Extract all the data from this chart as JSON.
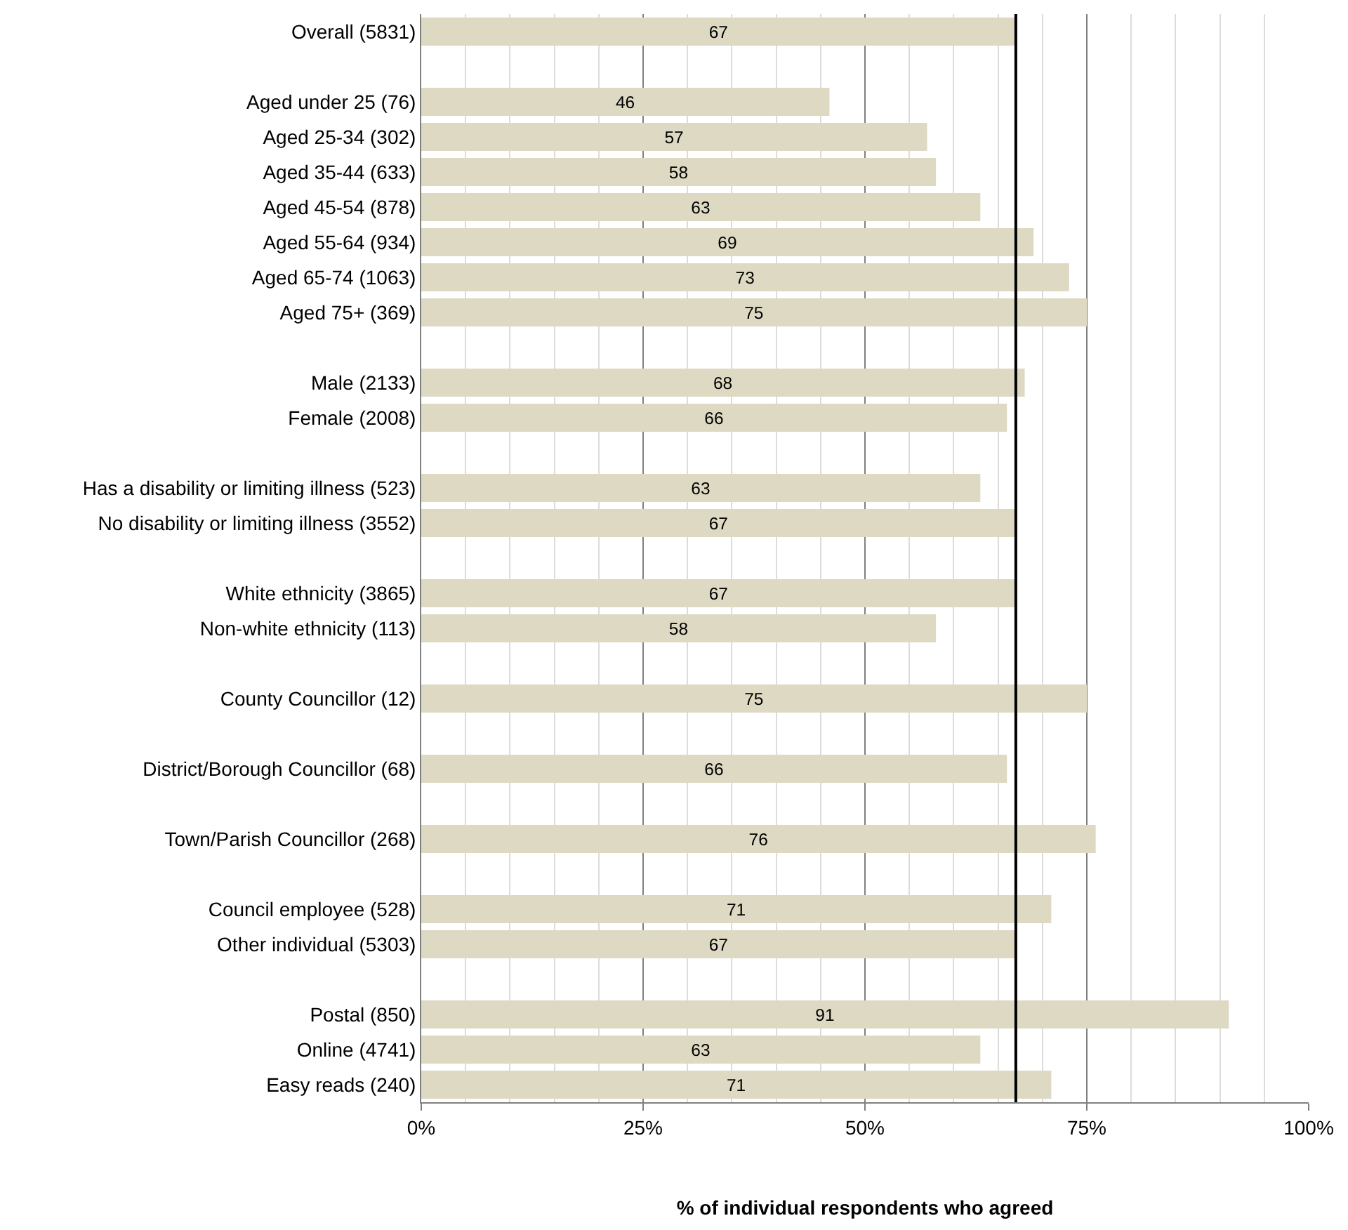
{
  "chart_data": {
    "type": "bar",
    "orientation": "horizontal",
    "xlabel": "% of individual respondents who agreed",
    "categories": [
      "Overall (5831)",
      null,
      "Aged under 25 (76)",
      "Aged 25-34 (302)",
      "Aged 35-44 (633)",
      "Aged 45-54 (878)",
      "Aged 55-64 (934)",
      "Aged 65-74 (1063)",
      "Aged 75+ (369)",
      null,
      "Male (2133)",
      "Female (2008)",
      null,
      "Has a disability or limiting illness (523)",
      "No disability or limiting illness (3552)",
      null,
      "White ethnicity (3865)",
      "Non-white ethnicity (113)",
      null,
      "County Councillor (12)",
      null,
      "District/Borough Councillor (68)",
      null,
      "Town/Parish Councillor (268)",
      null,
      "Council employee (528)",
      "Other individual (5303)",
      null,
      "Postal (850)",
      "Online (4741)",
      "Easy reads (240)"
    ],
    "values": [
      67,
      null,
      46,
      57,
      58,
      63,
      69,
      73,
      75,
      null,
      68,
      66,
      null,
      63,
      67,
      null,
      67,
      58,
      null,
      75,
      null,
      66,
      null,
      76,
      null,
      71,
      67,
      null,
      91,
      63,
      71
    ],
    "color": "#ddd9c3",
    "data_labels": true,
    "xlim": [
      0,
      100
    ],
    "xticks": [
      {
        "value": 0,
        "label": "0%"
      },
      {
        "value": 5,
        "label": null
      },
      {
        "value": 10,
        "label": null
      },
      {
        "value": 15,
        "label": null
      },
      {
        "value": 20,
        "label": null
      },
      {
        "value": 25,
        "label": "25%"
      },
      {
        "value": 30,
        "label": null
      },
      {
        "value": 35,
        "label": null
      },
      {
        "value": 40,
        "label": null
      },
      {
        "value": 45,
        "label": null
      },
      {
        "value": 50,
        "label": "50%"
      },
      {
        "value": 55,
        "label": null
      },
      {
        "value": 60,
        "label": null
      },
      {
        "value": 65,
        "label": null
      },
      {
        "value": 70,
        "label": null
      },
      {
        "value": 75,
        "label": "75%"
      },
      {
        "value": 80,
        "label": null
      },
      {
        "value": 85,
        "label": null
      },
      {
        "value": 90,
        "label": null
      },
      {
        "value": 95,
        "label": null
      },
      {
        "value": 100,
        "label": "100%"
      }
    ],
    "grid": "x",
    "legend": false,
    "ref_lines": [
      {
        "axis": "x",
        "value": 67,
        "color": "#000000"
      }
    ]
  }
}
